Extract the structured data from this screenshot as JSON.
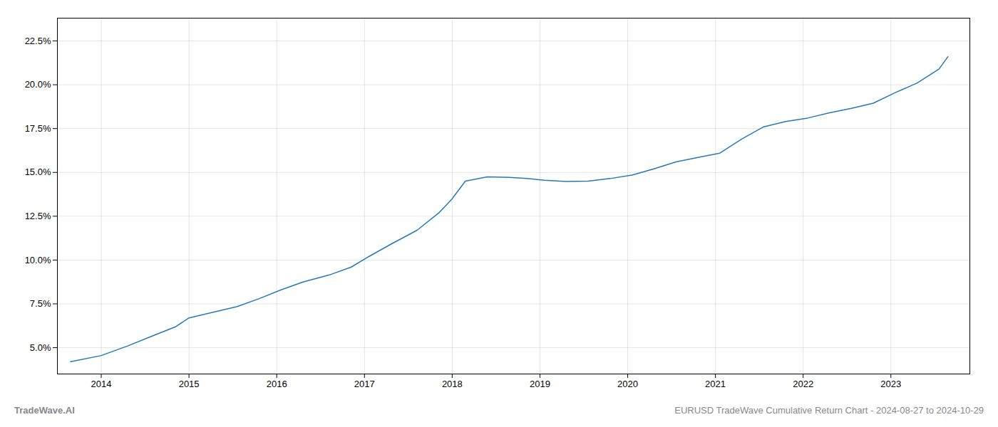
{
  "chart_data": {
    "type": "line",
    "annotations": [
      "TradeWave.AI",
      "EURUSD TradeWave Cumulative Return Chart - 2024-08-27 to 2024-10-29"
    ],
    "x": [
      2013.65,
      2014.0,
      2014.3,
      2014.6,
      2014.85,
      2015.0,
      2015.3,
      2015.55,
      2015.8,
      2016.05,
      2016.3,
      2016.6,
      2016.85,
      2017.05,
      2017.3,
      2017.6,
      2017.85,
      2018.0,
      2018.15,
      2018.4,
      2018.65,
      2018.85,
      2019.05,
      2019.3,
      2019.55,
      2019.8,
      2020.05,
      2020.3,
      2020.55,
      2020.8,
      2021.05,
      2021.3,
      2021.55,
      2021.8,
      2022.05,
      2022.3,
      2022.55,
      2022.8,
      2023.05,
      2023.3,
      2023.55,
      2023.65
    ],
    "values": [
      4.2,
      4.55,
      5.1,
      5.7,
      6.2,
      6.7,
      7.05,
      7.35,
      7.8,
      8.3,
      8.75,
      9.15,
      9.6,
      10.2,
      10.9,
      11.7,
      12.7,
      13.5,
      14.5,
      14.75,
      14.72,
      14.65,
      14.55,
      14.48,
      14.5,
      14.65,
      14.85,
      15.2,
      15.6,
      15.85,
      16.1,
      16.9,
      17.6,
      17.9,
      18.1,
      18.4,
      18.65,
      18.95,
      19.55,
      20.1,
      20.9,
      21.6
    ],
    "color": "#2878b8",
    "xlim": [
      2013.5,
      2023.9
    ],
    "ylim": [
      3.5,
      23.8
    ],
    "xticks": [
      2014,
      2015,
      2016,
      2017,
      2018,
      2019,
      2020,
      2021,
      2022,
      2023
    ],
    "yticks": [
      {
        "value": 5.0,
        "label": "5.0%"
      },
      {
        "value": 7.5,
        "label": "7.5%"
      },
      {
        "value": 10.0,
        "label": "10.0%"
      },
      {
        "value": 12.5,
        "label": "12.5%"
      },
      {
        "value": 15.0,
        "label": "15.0%"
      },
      {
        "value": 17.5,
        "label": "17.5%"
      },
      {
        "value": 20.0,
        "label": "20.0%"
      },
      {
        "value": 22.5,
        "label": "22.5%"
      }
    ],
    "grid": true
  }
}
